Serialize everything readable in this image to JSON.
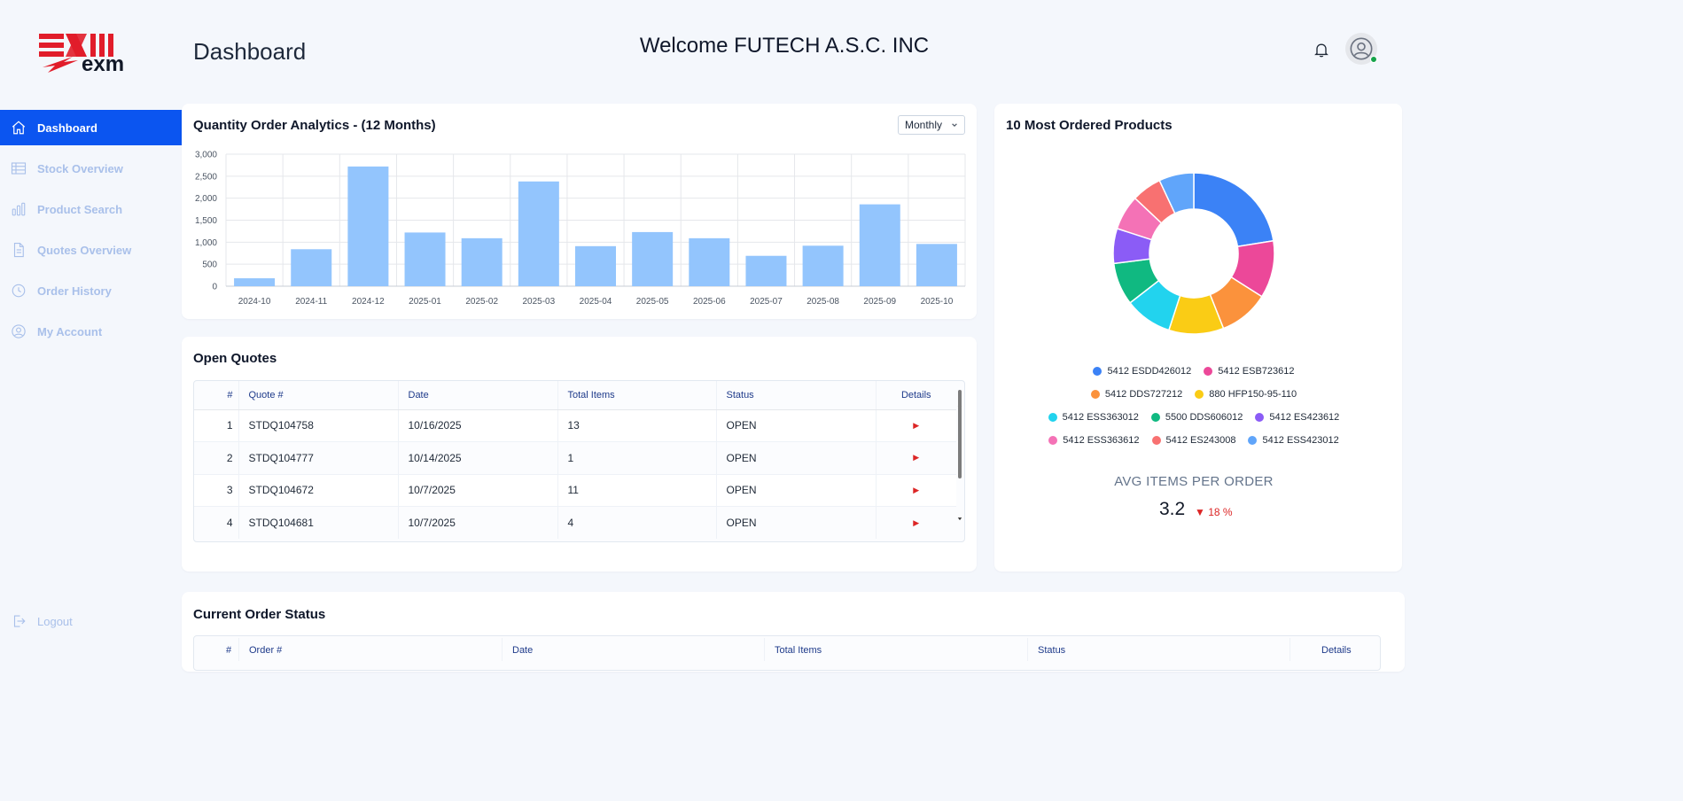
{
  "header": {
    "page_title": "Dashboard",
    "welcome": "Welcome FUTECH A.S.C. INC"
  },
  "logo": {
    "text": "exm"
  },
  "sidebar": {
    "items": [
      {
        "label": "Dashboard",
        "icon": "home-icon",
        "active": true
      },
      {
        "label": "Stock Overview",
        "icon": "table-icon"
      },
      {
        "label": "Product Search",
        "icon": "bar-chart-icon"
      },
      {
        "label": "Quotes Overview",
        "icon": "document-icon"
      },
      {
        "label": "Order History",
        "icon": "clock-icon"
      },
      {
        "label": "My Account",
        "icon": "user-circle-icon"
      }
    ],
    "logout": "Logout"
  },
  "bar_chart": {
    "title": "Quantity Order Analytics - (12 Months)",
    "period_select": "Monthly"
  },
  "chart_data": [
    {
      "type": "bar",
      "title": "Quantity Order Analytics - (12 Months)",
      "categories": [
        "2024-10",
        "2024-11",
        "2024-12",
        "2025-01",
        "2025-02",
        "2025-03",
        "2025-04",
        "2025-05",
        "2025-06",
        "2025-07",
        "2025-08",
        "2025-09",
        "2025-10"
      ],
      "values": [
        180,
        840,
        2720,
        1220,
        1090,
        2380,
        910,
        1230,
        1090,
        690,
        920,
        1860,
        960
      ],
      "yticks": [
        "0",
        "500",
        "1,000",
        "1,500",
        "2,000",
        "2,500",
        "3,000"
      ],
      "ylim": [
        0,
        3000
      ],
      "grid": true,
      "color": "#93c5fd"
    },
    {
      "type": "pie",
      "title": "10 Most Ordered Products",
      "labels": [
        "5412 ESDD426012",
        "5412 ESB723612",
        "5412 DDS727212",
        "880 HFP150-95-110",
        "5412 ESS363012",
        "5500 DDS606012",
        "5412 ES423612",
        "5412 ESS363612",
        "5412 ES243008",
        "5412 ESS423012"
      ],
      "values": [
        22.5,
        11.5,
        10,
        11,
        9.5,
        8.5,
        7,
        7,
        6,
        7
      ],
      "colors": [
        "#3b82f6",
        "#ec4899",
        "#fb923c",
        "#facc15",
        "#22d3ee",
        "#10b981",
        "#8b5cf6",
        "#f472b6",
        "#f87171",
        "#60a5fa"
      ],
      "legend": "bottom"
    }
  ],
  "donut": {
    "title": "10 Most Ordered Products"
  },
  "avg": {
    "label": "AVG ITEMS PER ORDER",
    "value": "3.2",
    "change": "18 %"
  },
  "open_quotes": {
    "title": "Open Quotes",
    "columns": [
      "#",
      "Quote #",
      "Date",
      "Total Items",
      "Status",
      "Details"
    ],
    "rows": [
      {
        "n": "1",
        "quote": "STDQ104758",
        "date": "10/16/2025",
        "items": "13",
        "status": "OPEN"
      },
      {
        "n": "2",
        "quote": "STDQ104777",
        "date": "10/14/2025",
        "items": "1",
        "status": "OPEN"
      },
      {
        "n": "3",
        "quote": "STDQ104672",
        "date": "10/7/2025",
        "items": "11",
        "status": "OPEN"
      },
      {
        "n": "4",
        "quote": "STDQ104681",
        "date": "10/7/2025",
        "items": "4",
        "status": "OPEN"
      }
    ]
  },
  "current_orders": {
    "title": "Current Order Status",
    "columns": [
      "#",
      "Order #",
      "Date",
      "Total Items",
      "Status",
      "Details"
    ]
  }
}
